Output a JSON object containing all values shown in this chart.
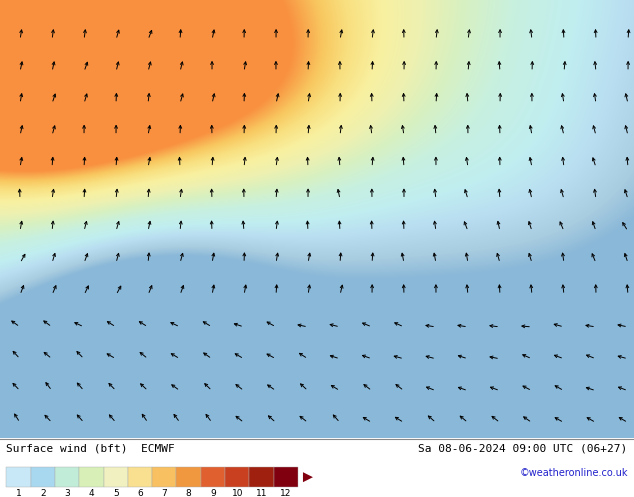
{
  "title_left": "Surface wind (bft)  ECMWF",
  "title_right": "Sa 08-06-2024 09:00 UTC (06+27)",
  "subtitle_right": "©weatheronline.co.uk",
  "colorbar_labels": [
    "1",
    "2",
    "3",
    "4",
    "5",
    "6",
    "7",
    "8",
    "9",
    "10",
    "11",
    "12"
  ],
  "colorbar_colors": [
    "#c8e8f8",
    "#a8d8f0",
    "#c0ecd8",
    "#d8f0b8",
    "#f0f0c0",
    "#f8e090",
    "#f8c060",
    "#f09840",
    "#e06030",
    "#c84020",
    "#a02010",
    "#800010"
  ],
  "fig_width": 6.34,
  "fig_height": 4.9,
  "dpi": 100
}
